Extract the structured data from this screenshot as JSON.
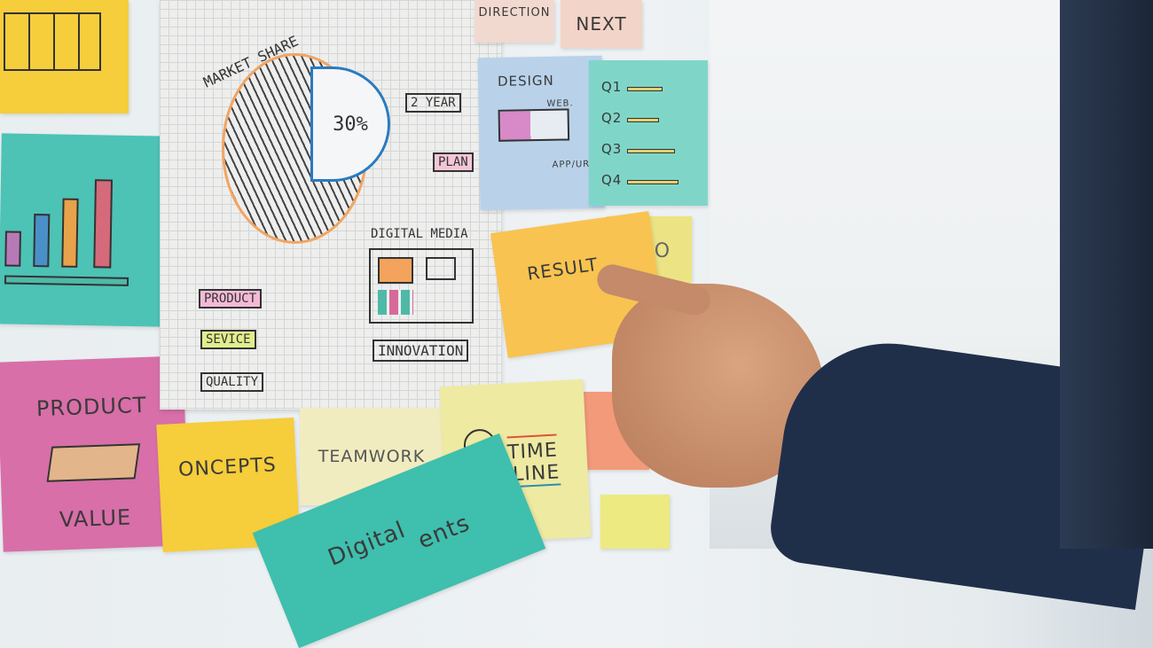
{
  "board": {
    "sheet": {
      "title": "MARKET SHARE",
      "pie_label": "30%",
      "plan_items": [
        "2 YEAR",
        "PLAN"
      ],
      "digital_media": "DIGITAL MEDIA",
      "labels": [
        "PRODUCT",
        "SEVICE",
        "QUALITY"
      ],
      "innovation": "INNOVATION"
    },
    "notes": {
      "direction": "DIRECTION",
      "next": "NEXT",
      "design": {
        "title": "DESIGN",
        "web": "WEB.",
        "app": "APP/URL"
      },
      "quarters": [
        "Q1",
        "Q2",
        "Q3",
        "Q4"
      ],
      "result": "RESULT",
      "seo": "SEO",
      "product_value": {
        "top": "PRODUCT",
        "bottom": "VALUE"
      },
      "concepts": "ONCEPTS",
      "teamwork": "TEAMWORK",
      "timeline": [
        "TIME",
        "LINE"
      ],
      "digital": [
        "Digital",
        "ents"
      ]
    }
  },
  "colors": {
    "yellow": "#f6cd3a",
    "teal": "#4cc3b5",
    "pink": "#d86fa8",
    "orange": "#f7b94e",
    "navy": "#1f2f4a",
    "skin": "#c48a69"
  }
}
